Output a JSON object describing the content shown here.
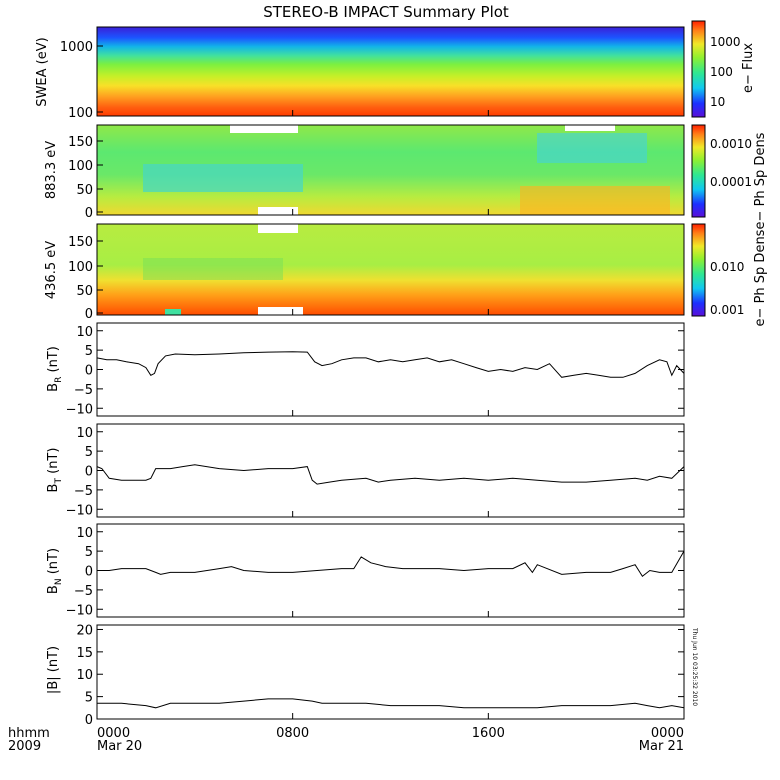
{
  "chart_data": {
    "type": "line",
    "title": "STEREO-B IMPACT Summary Plot",
    "timestamp": "Thu Jun 10 03:25:32 2010",
    "x_axis": {
      "range_hours": [
        0,
        24
      ],
      "tick_hours": [
        0,
        8,
        16,
        24
      ],
      "tick_labels": [
        "0000",
        "0800",
        "1600",
        "0000"
      ],
      "date_labels": [
        "Mar 20",
        "",
        "",
        "Mar 21"
      ],
      "corner_label_top": "hhmm",
      "corner_label_bottom": "2009"
    },
    "spectrograms": [
      {
        "id": "swea",
        "ylabel": "SWEA (eV)",
        "yscale": "log",
        "ylim": [
          100,
          2000
        ],
        "yticks": [
          100,
          1000
        ],
        "ytick_labels": [
          "100",
          "1000"
        ],
        "colorbar_label": "e− Flux",
        "colorbar_scale": "log",
        "colorbar_ticks": [
          "10",
          "100",
          "1000"
        ]
      },
      {
        "id": "pad883",
        "ylabel": "883.3 eV",
        "yscale": "linear",
        "ylim": [
          0,
          180
        ],
        "yticks": [
          0,
          50,
          100,
          150
        ],
        "ytick_labels": [
          "0",
          "50",
          "100",
          "150"
        ],
        "colorbar_label": "e− Ph Sp Dens",
        "colorbar_scale": "log",
        "colorbar_ticks": [
          "0.0001",
          "0.0010"
        ]
      },
      {
        "id": "pad436",
        "ylabel": "436.5 eV",
        "yscale": "linear",
        "ylim": [
          0,
          180
        ],
        "yticks": [
          0,
          50,
          100,
          150
        ],
        "ytick_labels": [
          "0",
          "50",
          "100",
          "150"
        ],
        "colorbar_label": "e− Ph Sp Dens",
        "colorbar_scale": "log",
        "colorbar_ticks": [
          "0.001",
          "0.010"
        ]
      }
    ],
    "series": [
      {
        "id": "br",
        "ylabel_base": "B",
        "ylabel_sub": "R",
        "ylabel_unit": " (nT)",
        "ylim": [
          -12,
          12
        ],
        "yticks": [
          -10,
          -5,
          0,
          5,
          10
        ],
        "ytick_labels": [
          "−10",
          "−5",
          "0",
          "5",
          "10"
        ],
        "x_hours": [
          0,
          0.4,
          0.8,
          1.2,
          1.7,
          2.0,
          2.2,
          2.35,
          2.5,
          2.8,
          3.2,
          4.0,
          5.0,
          6.0,
          7.0,
          8.0,
          8.6,
          8.9,
          9.2,
          9.6,
          10.0,
          10.5,
          11.0,
          11.5,
          12.0,
          12.5,
          13.0,
          13.5,
          14.0,
          14.5,
          15.0,
          15.5,
          16.0,
          16.5,
          17.0,
          17.5,
          18.0,
          18.5,
          19.0,
          19.5,
          20.0,
          20.5,
          21.0,
          21.5,
          22.0,
          22.5,
          23.0,
          23.3,
          23.5,
          23.7,
          24.0
        ],
        "values": [
          3.0,
          2.5,
          2.5,
          2.0,
          1.5,
          0.5,
          -1.5,
          -1.0,
          1.5,
          3.5,
          4.0,
          3.8,
          4.0,
          4.3,
          4.5,
          4.6,
          4.5,
          2.0,
          1.0,
          1.5,
          2.5,
          3.0,
          3.0,
          2.0,
          2.5,
          2.0,
          2.5,
          3.0,
          2.0,
          2.5,
          1.5,
          0.5,
          -0.5,
          0.0,
          -0.5,
          0.5,
          0.0,
          1.5,
          -2.0,
          -1.5,
          -1.0,
          -1.5,
          -2.0,
          -2.0,
          -1.0,
          1.0,
          2.5,
          2.0,
          -1.5,
          1.0,
          -1.0
        ]
      },
      {
        "id": "bt",
        "ylabel_base": "B",
        "ylabel_sub": "T",
        "ylabel_unit": " (nT)",
        "ylim": [
          -12,
          12
        ],
        "yticks": [
          -10,
          -5,
          0,
          5,
          10
        ],
        "ytick_labels": [
          "−10",
          "−5",
          "0",
          "5",
          "10"
        ],
        "x_hours": [
          0,
          0.2,
          0.5,
          1.0,
          1.5,
          2.0,
          2.2,
          2.4,
          3.0,
          3.5,
          4.0,
          5.0,
          6.0,
          7.0,
          8.0,
          8.6,
          8.8,
          9.0,
          9.5,
          10.0,
          11.0,
          11.5,
          12.0,
          13.0,
          14.0,
          15.0,
          16.0,
          17.0,
          18.0,
          19.0,
          20.0,
          21.0,
          22.0,
          22.5,
          23.0,
          23.5,
          24.0
        ],
        "values": [
          1.0,
          0.5,
          -2.0,
          -2.5,
          -2.5,
          -2.5,
          -2.0,
          0.5,
          0.5,
          1.0,
          1.5,
          0.5,
          0.0,
          0.5,
          0.5,
          1.0,
          -2.5,
          -3.5,
          -3.0,
          -2.5,
          -2.0,
          -3.0,
          -2.5,
          -2.0,
          -2.5,
          -2.0,
          -2.5,
          -2.0,
          -2.5,
          -3.0,
          -3.0,
          -2.5,
          -2.0,
          -2.5,
          -1.5,
          -2.0,
          1.0
        ]
      },
      {
        "id": "bn",
        "ylabel_base": "B",
        "ylabel_sub": "N",
        "ylabel_unit": " (nT)",
        "ylim": [
          -12,
          12
        ],
        "yticks": [
          -10,
          -5,
          0,
          5,
          10
        ],
        "ytick_labels": [
          "−10",
          "−5",
          "0",
          "5",
          "10"
        ],
        "x_hours": [
          0,
          0.5,
          1.0,
          1.5,
          2.0,
          2.4,
          2.6,
          3.0,
          4.0,
          5.0,
          5.5,
          6.0,
          7.0,
          8.0,
          9.0,
          10.0,
          10.5,
          10.8,
          11.2,
          11.8,
          12.5,
          13.0,
          14.0,
          15.0,
          16.0,
          17.0,
          17.5,
          17.8,
          18.0,
          19.0,
          20.0,
          21.0,
          21.5,
          22.0,
          22.3,
          22.6,
          23.0,
          23.5,
          24.0
        ],
        "values": [
          0.0,
          0.0,
          0.5,
          0.5,
          0.5,
          -0.5,
          -1.0,
          -0.5,
          -0.5,
          0.5,
          1.0,
          0.0,
          -0.5,
          -0.5,
          0.0,
          0.5,
          0.5,
          3.5,
          2.0,
          1.0,
          0.5,
          0.5,
          0.5,
          0.0,
          0.5,
          0.5,
          2.0,
          -0.5,
          1.5,
          -1.0,
          -0.5,
          -0.5,
          0.5,
          1.5,
          -1.5,
          0.0,
          -0.5,
          -0.5,
          5.0
        ]
      },
      {
        "id": "bmag",
        "ylabel_base": "|B| (nT)",
        "ylabel_sub": "",
        "ylabel_unit": "",
        "ylim": [
          0,
          21
        ],
        "yticks": [
          0,
          5,
          10,
          15,
          20
        ],
        "ytick_labels": [
          "0",
          "5",
          "10",
          "15",
          "20"
        ],
        "x_hours": [
          0,
          1.0,
          2.0,
          2.4,
          3.0,
          4.0,
          5.0,
          6.0,
          7.0,
          8.0,
          8.8,
          9.2,
          10.0,
          11.0,
          12.0,
          13.0,
          14.0,
          15.0,
          16.0,
          17.0,
          18.0,
          19.0,
          20.0,
          21.0,
          22.0,
          22.5,
          23.0,
          23.5,
          24.0
        ],
        "values": [
          3.5,
          3.5,
          3.0,
          2.5,
          3.5,
          3.5,
          3.5,
          4.0,
          4.5,
          4.5,
          4.0,
          3.5,
          3.5,
          3.5,
          3.0,
          3.0,
          3.0,
          2.5,
          2.5,
          2.5,
          2.5,
          3.0,
          3.0,
          3.0,
          3.5,
          3.0,
          2.5,
          3.0,
          2.5
        ]
      }
    ]
  }
}
